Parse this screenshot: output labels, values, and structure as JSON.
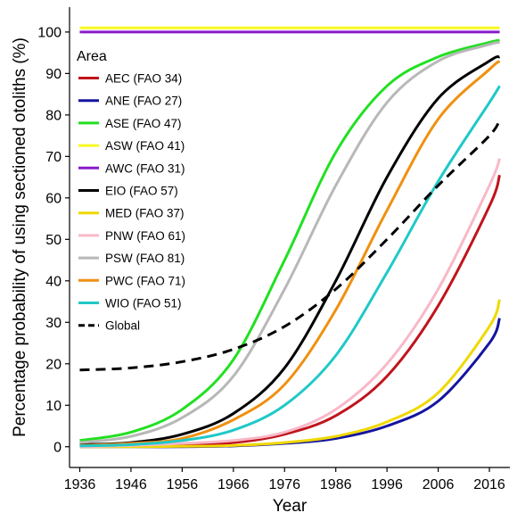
{
  "chart_data": {
    "type": "line",
    "title": "",
    "xlabel": "Year",
    "ylabel": "Percentage probability of using sectioned otoliths (%)",
    "xlim": [
      1934,
      2020
    ],
    "ylim": [
      -5,
      106
    ],
    "x_ticks": [
      1936,
      1946,
      1956,
      1966,
      1976,
      1986,
      1996,
      2006,
      2016
    ],
    "y_ticks": [
      0,
      10,
      20,
      30,
      40,
      50,
      60,
      70,
      80,
      90,
      100
    ],
    "grid": false,
    "legend": {
      "title": "Area",
      "position": "top-left"
    },
    "series": [
      {
        "name": "AEC (FAO 34)",
        "color": "#c0141c",
        "style": "solid",
        "x": [
          1936,
          1946,
          1956,
          1966,
          1976,
          1986,
          1996,
          2006,
          2016,
          2018
        ],
        "y": [
          0,
          0.2,
          0.4,
          1.0,
          3.0,
          7.5,
          17.0,
          34.0,
          58.0,
          65.5
        ]
      },
      {
        "name": "ANE (FAO 27)",
        "color": "#1414a0",
        "style": "solid",
        "x": [
          1936,
          1946,
          1956,
          1966,
          1976,
          1986,
          1996,
          2006,
          2016,
          2018
        ],
        "y": [
          0,
          0,
          0,
          0.2,
          0.8,
          2.0,
          5.0,
          11.0,
          25.0,
          31.0
        ]
      },
      {
        "name": "ASE (FAO 47)",
        "color": "#22e022",
        "style": "solid",
        "x": [
          1936,
          1946,
          1956,
          1966,
          1976,
          1986,
          1996,
          2006,
          2016,
          2018
        ],
        "y": [
          1.5,
          3.5,
          9.0,
          21.0,
          45.0,
          71.0,
          87.0,
          94.0,
          97.5,
          98.0
        ]
      },
      {
        "name": "ASW (FAO 41)",
        "color": "#f8f820",
        "style": "solid",
        "x": [
          1936,
          2018
        ],
        "y": [
          101,
          101
        ]
      },
      {
        "name": "AWC (FAO 31)",
        "color": "#8a1ac8",
        "style": "solid",
        "x": [
          1936,
          2018
        ],
        "y": [
          100,
          100
        ]
      },
      {
        "name": "EIO (FAO 57)",
        "color": "#000000",
        "style": "solid",
        "x": [
          1936,
          1946,
          1956,
          1966,
          1976,
          1986,
          1996,
          2006,
          2016,
          2018
        ],
        "y": [
          0.5,
          1.0,
          3.0,
          8.0,
          19.0,
          40.0,
          65.0,
          84.0,
          93.0,
          94.0
        ]
      },
      {
        "name": "MED (FAO 37)",
        "color": "#f0d800",
        "style": "solid",
        "x": [
          1936,
          1946,
          1956,
          1966,
          1976,
          1986,
          1996,
          2006,
          2016,
          2018
        ],
        "y": [
          0,
          0,
          0.1,
          0.3,
          1.0,
          2.5,
          6.0,
          13.0,
          29.0,
          35.5
        ]
      },
      {
        "name": "PNW (FAO 61)",
        "color": "#f8b8c8",
        "style": "solid",
        "x": [
          1936,
          1946,
          1956,
          1966,
          1976,
          1986,
          1996,
          2006,
          2016,
          2018
        ],
        "y": [
          0,
          0.3,
          0.8,
          1.5,
          3.5,
          9.0,
          20.0,
          38.0,
          63.0,
          69.5
        ]
      },
      {
        "name": "PSW (FAO 81)",
        "color": "#b8b8b8",
        "style": "solid",
        "x": [
          1936,
          1946,
          1956,
          1966,
          1976,
          1986,
          1996,
          2006,
          2016,
          2018
        ],
        "y": [
          1.0,
          2.5,
          7.0,
          17.0,
          38.0,
          63.0,
          83.0,
          93.0,
          97.0,
          97.5
        ]
      },
      {
        "name": "PWC (FAO 71)",
        "color": "#f09010",
        "style": "solid",
        "x": [
          1936,
          1946,
          1956,
          1966,
          1976,
          1986,
          1996,
          2006,
          2016,
          2018
        ],
        "y": [
          0.3,
          0.8,
          2.0,
          6.5,
          15.0,
          33.0,
          57.0,
          79.0,
          91.0,
          93.0
        ]
      },
      {
        "name": "WIO (FAO 51)",
        "color": "#20c8c8",
        "style": "solid",
        "x": [
          1936,
          1946,
          1956,
          1966,
          1976,
          1986,
          1996,
          2006,
          2016,
          2018
        ],
        "y": [
          0.2,
          0.5,
          1.5,
          4.0,
          10.0,
          22.0,
          42.0,
          64.0,
          83.0,
          87.0
        ]
      },
      {
        "name": "Global",
        "color": "#000000",
        "style": "dashed",
        "x": [
          1936,
          1946,
          1956,
          1966,
          1976,
          1986,
          1996,
          2006,
          2016,
          2018
        ],
        "y": [
          18.5,
          19.0,
          20.5,
          23.5,
          29.0,
          38.0,
          50.0,
          63.0,
          75.0,
          79.0
        ]
      }
    ]
  }
}
